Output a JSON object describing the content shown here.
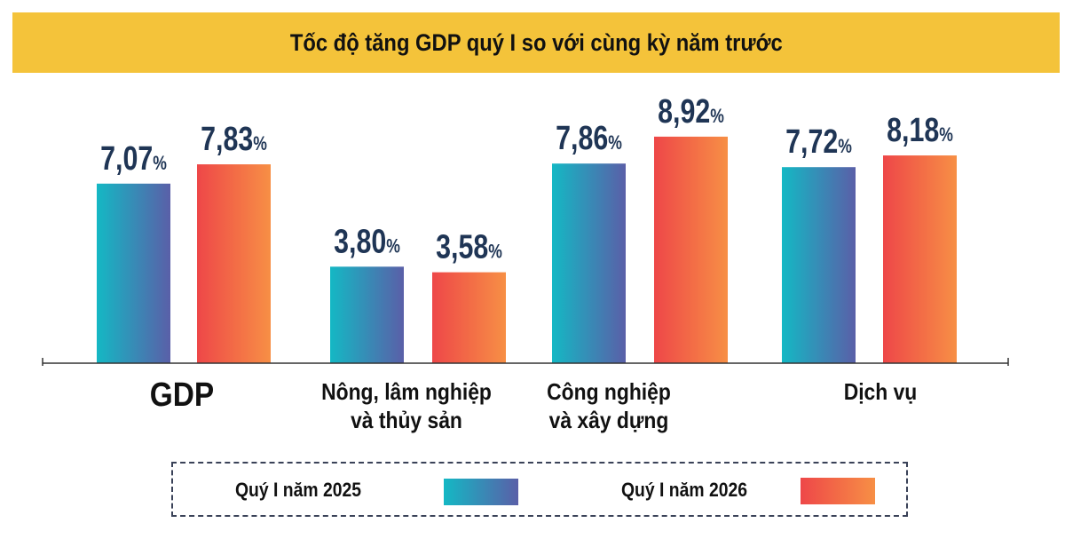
{
  "chart_data": {
    "type": "bar",
    "title": "Tốc độ tăng GDP quý I so với cùng kỳ năm trước",
    "categories": [
      "GDP",
      "Nông, lâm nghiệp\nvà thủy sản",
      "Công nghiệp\nvà xây dựng",
      "Dịch vụ"
    ],
    "series": [
      {
        "name": "Quý I năm 2025",
        "values": [
          7.07,
          3.8,
          7.86,
          7.72
        ],
        "labels": [
          "7,07",
          "3,80",
          "7,86",
          "7,72"
        ],
        "gradient": [
          "#14b8c4",
          "#5a5fa8"
        ]
      },
      {
        "name": "Quý I năm 2026",
        "values": [
          7.83,
          3.58,
          8.92,
          8.18
        ],
        "labels": [
          "7,83",
          "3,58",
          "8,92",
          "8,18"
        ],
        "gradient": [
          "#ee4748",
          "#f78f45"
        ]
      }
    ],
    "unit": "%",
    "ylim": [
      0,
      10
    ],
    "grid": false,
    "legend_position": "bottom"
  },
  "colors": {
    "title_bg": "#f4c33a",
    "value_text": "#1f3555"
  }
}
